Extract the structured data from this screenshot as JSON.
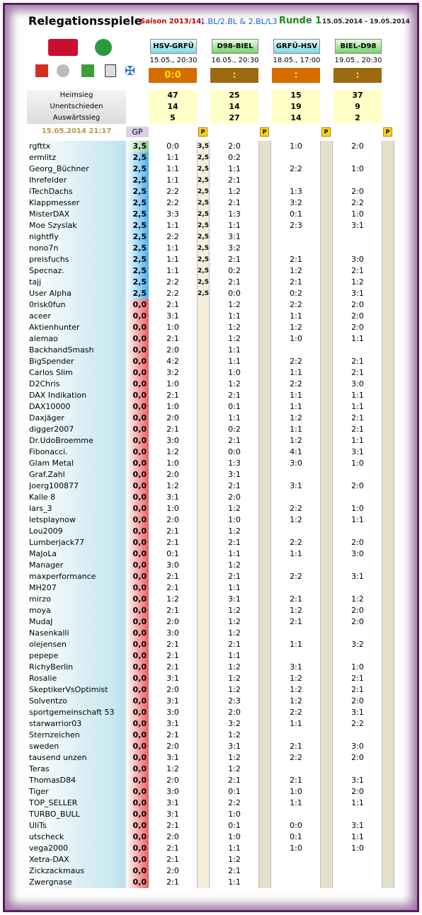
{
  "header": {
    "title": "Relegationsspiele",
    "season": "Saison 2013/14,",
    "leagues": "1.BL/2.BL & 2.BL/L3",
    "round": "Runde 1",
    "dates": "15.05.2014 - 19.05.2014"
  },
  "games": [
    {
      "teams": "HSV-GRFÜ",
      "date": "15.05., 20:30",
      "result": "0:0",
      "stats": [
        47,
        14,
        5
      ]
    },
    {
      "teams": "D98-BIEL",
      "date": "16.05., 20:30",
      "result": ":",
      "stats": [
        25,
        14,
        27
      ]
    },
    {
      "teams": "GRFÜ-HSV",
      "date": "18.05., 17:00",
      "result": ":",
      "stats": [
        15,
        19,
        14
      ]
    },
    {
      "teams": "BIEL-D98",
      "date": "19.05., 20:30",
      "result": ":",
      "stats": [
        37,
        9,
        2
      ]
    }
  ],
  "stat_labels": [
    "Heimsieg",
    "Unentschieden",
    "Auswärtssieg"
  ],
  "timestamp": "15.05.2014 21:17",
  "gp_label": "GP",
  "p_label": "P",
  "rows": [
    {
      "name": "rgfttx",
      "gp": "3,5",
      "tips": [
        "0:0",
        "2:0",
        "1:0",
        "2:0"
      ],
      "pts": "3,5"
    },
    {
      "name": "ermlitz",
      "gp": "2,5",
      "tips": [
        "1:1",
        "0:2",
        null,
        null
      ],
      "pts": "2,5"
    },
    {
      "name": "Georg_Büchner",
      "gp": "2,5",
      "tips": [
        "1:1",
        "1:1",
        "2:2",
        "1:0"
      ],
      "pts": "2,5"
    },
    {
      "name": "Ihrefelder",
      "gp": "2,5",
      "tips": [
        "1:1",
        "2:1",
        null,
        null
      ],
      "pts": "2,5"
    },
    {
      "name": "iTechDachs",
      "gp": "2,5",
      "tips": [
        "2:2",
        "1:2",
        "1:3",
        "2:0"
      ],
      "pts": "2,5"
    },
    {
      "name": "Klappmesser",
      "gp": "2,5",
      "tips": [
        "2:2",
        "2:1",
        "3:2",
        "2:2"
      ],
      "pts": "2,5"
    },
    {
      "name": "MisterDAX",
      "gp": "2,5",
      "tips": [
        "3:3",
        "1:3",
        "0:1",
        "1:0"
      ],
      "pts": "2,5"
    },
    {
      "name": "Moe Szyslak",
      "gp": "2,5",
      "tips": [
        "1:1",
        "1:1",
        "2:3",
        "3:1"
      ],
      "pts": "2,5"
    },
    {
      "name": "nightfly",
      "gp": "2,5",
      "tips": [
        "2:2",
        "3:1",
        null,
        null
      ],
      "pts": "2,5"
    },
    {
      "name": "nono7n",
      "gp": "2,5",
      "tips": [
        "1:1",
        "3:2",
        null,
        null
      ],
      "pts": "2,5"
    },
    {
      "name": "preisfuchs",
      "gp": "2,5",
      "tips": [
        "1:1",
        "2:1",
        "2:1",
        "3:0"
      ],
      "pts": "2,5"
    },
    {
      "name": "Specnaz.",
      "gp": "2,5",
      "tips": [
        "1:1",
        "0:2",
        "1:2",
        "2:1"
      ],
      "pts": "2,5"
    },
    {
      "name": "tajj",
      "gp": "2,5",
      "tips": [
        "2:2",
        "2:1",
        "2:1",
        "1:2"
      ],
      "pts": "2,5"
    },
    {
      "name": "User Alpha",
      "gp": "2,5",
      "tips": [
        "2:2",
        "0:0",
        "0:2",
        "3:1"
      ],
      "pts": "2,5"
    },
    {
      "name": "0risk0fun",
      "gp": "0,0",
      "tips": [
        "2:1",
        "1:2",
        "2:2",
        "2:0"
      ]
    },
    {
      "name": "aceer",
      "gp": "0,0",
      "tips": [
        "3:1",
        "1:1",
        "1:1",
        "2:0"
      ]
    },
    {
      "name": "Aktienhunter",
      "gp": "0,0",
      "tips": [
        "1:0",
        "1:2",
        "1:2",
        "2:0"
      ]
    },
    {
      "name": "alemao",
      "gp": "0,0",
      "tips": [
        "2:1",
        "1:2",
        "1:0",
        "1:1"
      ]
    },
    {
      "name": "BackhandSmash",
      "gp": "0,0",
      "tips": [
        "2:0",
        "1:1",
        null,
        null
      ]
    },
    {
      "name": "BigSpender",
      "gp": "0,0",
      "tips": [
        "4:2",
        "1:1",
        "2:2",
        "2:1"
      ]
    },
    {
      "name": "Carlos Slim",
      "gp": "0,0",
      "tips": [
        "3:2",
        "1:0",
        "1:1",
        "2:1"
      ]
    },
    {
      "name": "D2Chris",
      "gp": "0,0",
      "tips": [
        "1:0",
        "1:2",
        "2:2",
        "3:0"
      ]
    },
    {
      "name": "DAX Indikation",
      "gp": "0,0",
      "tips": [
        "2:1",
        "2:1",
        "1:1",
        "1:1"
      ]
    },
    {
      "name": "DAX10000",
      "gp": "0,0",
      "tips": [
        "1:0",
        "0:1",
        "1:1",
        "1:1"
      ]
    },
    {
      "name": "Daxjäger",
      "gp": "0,0",
      "tips": [
        "2:0",
        "1:1",
        "1:2",
        "2:1"
      ]
    },
    {
      "name": "digger2007",
      "gp": "0,0",
      "tips": [
        "2:1",
        "0:2",
        "1:1",
        "2:1"
      ]
    },
    {
      "name": "Dr.UdoBroemme",
      "gp": "0,0",
      "tips": [
        "3:0",
        "2:1",
        "1:2",
        "1:1"
      ]
    },
    {
      "name": "Fibonacci.",
      "gp": "0,0",
      "tips": [
        "1:2",
        "0:0",
        "4:1",
        "3:1"
      ]
    },
    {
      "name": "Glam Metal",
      "gp": "0,0",
      "tips": [
        "1:0",
        "1:3",
        "3:0",
        "1:0"
      ]
    },
    {
      "name": "Graf.Zahl",
      "gp": "0,0",
      "tips": [
        "2:0",
        "3:1",
        null,
        null
      ]
    },
    {
      "name": "Joerg100877",
      "gp": "0,0",
      "tips": [
        "1:2",
        "2:1",
        "3:1",
        "2:0"
      ]
    },
    {
      "name": "Kalle 8",
      "gp": "0,0",
      "tips": [
        "3:1",
        "2:0",
        null,
        null
      ]
    },
    {
      "name": "lars_3",
      "gp": "0,0",
      "tips": [
        "1:0",
        "1:2",
        "2:2",
        "1:0"
      ]
    },
    {
      "name": "letsplaynow",
      "gp": "0,0",
      "tips": [
        "2:0",
        "1:0",
        "1:2",
        "1:1"
      ]
    },
    {
      "name": "Lou2009",
      "gp": "0,0",
      "tips": [
        "2:1",
        "1:2",
        null,
        null
      ]
    },
    {
      "name": "Lumberjack77",
      "gp": "0,0",
      "tips": [
        "2:1",
        "2:1",
        "2:2",
        "2:0"
      ]
    },
    {
      "name": "MaJoLa",
      "gp": "0,0",
      "tips": [
        "0:1",
        "1:1",
        "1:1",
        "3:0"
      ]
    },
    {
      "name": "Manager",
      "gp": "0,0",
      "tips": [
        "3:0",
        "1:2",
        null,
        null
      ]
    },
    {
      "name": "maxperformance",
      "gp": "0,0",
      "tips": [
        "2:1",
        "2:1",
        "2:2",
        "3:1"
      ]
    },
    {
      "name": "MH207",
      "gp": "0,0",
      "tips": [
        "2:1",
        "1:1",
        null,
        null
      ]
    },
    {
      "name": "mirzo",
      "gp": "0,0",
      "tips": [
        "1:2",
        "3:1",
        "2:1",
        "1:2"
      ]
    },
    {
      "name": "moya",
      "gp": "0,0",
      "tips": [
        "2:1",
        "1:2",
        "1:2",
        "2:0"
      ]
    },
    {
      "name": "MudaJ",
      "gp": "0,0",
      "tips": [
        "2:0",
        "1:2",
        "2:1",
        "2:0"
      ]
    },
    {
      "name": "Nasenkalli",
      "gp": "0,0",
      "tips": [
        "3:0",
        "1:2",
        null,
        null
      ]
    },
    {
      "name": "olejensen",
      "gp": "0,0",
      "tips": [
        "2:1",
        "2:1",
        "1:1",
        "3:2"
      ]
    },
    {
      "name": "pepepe",
      "gp": "0,0",
      "tips": [
        "2:1",
        "1:1",
        null,
        null
      ]
    },
    {
      "name": "RichyBerlin",
      "gp": "0,0",
      "tips": [
        "2:1",
        "1:2",
        "3:1",
        "1:0"
      ]
    },
    {
      "name": "Rosalie",
      "gp": "0,0",
      "tips": [
        "3:1",
        "1:2",
        "1:2",
        "2:1"
      ]
    },
    {
      "name": "SkeptikerVsOptimist",
      "gp": "0,0",
      "tips": [
        "2:0",
        "1:2",
        "1:2",
        "2:1"
      ]
    },
    {
      "name": "Solventzo",
      "gp": "0,0",
      "tips": [
        "3:1",
        "2:3",
        "1:2",
        "2:0"
      ]
    },
    {
      "name": "sportgemeinschaft 53",
      "gp": "0,0",
      "tips": [
        "3:0",
        "2:0",
        "2:2",
        "3:1"
      ]
    },
    {
      "name": "starwarrior03",
      "gp": "0,0",
      "tips": [
        "3:1",
        "3:2",
        "1:1",
        "2:2"
      ]
    },
    {
      "name": "Sternzeichen",
      "gp": "0,0",
      "tips": [
        "2:1",
        "1:2",
        null,
        null
      ]
    },
    {
      "name": "sweden",
      "gp": "0,0",
      "tips": [
        "2:0",
        "3:1",
        "2:1",
        "3:0"
      ]
    },
    {
      "name": "tausend unzen",
      "gp": "0,0",
      "tips": [
        "3:1",
        "1:2",
        "2:2",
        "2:0"
      ]
    },
    {
      "name": "Teras",
      "gp": "0,0",
      "tips": [
        "1:2",
        "1:2",
        null,
        null
      ]
    },
    {
      "name": "ThomasD84",
      "gp": "0,0",
      "tips": [
        "2:0",
        "2:1",
        "2:1",
        "3:1"
      ]
    },
    {
      "name": "Tiger",
      "gp": "0,0",
      "tips": [
        "3:0",
        "0:1",
        "1:0",
        "2:0"
      ]
    },
    {
      "name": "TOP_SELLER",
      "gp": "0,0",
      "tips": [
        "3:1",
        "2:2",
        "1:1",
        "1:1"
      ]
    },
    {
      "name": "TURBO_BULL",
      "gp": "0,0",
      "tips": [
        "3:1",
        "1:0",
        null,
        null
      ]
    },
    {
      "name": "UliTs",
      "gp": "0,0",
      "tips": [
        "2:1",
        "0:1",
        "0:0",
        "3:1"
      ]
    },
    {
      "name": "utscheck",
      "gp": "0,0",
      "tips": [
        "2:0",
        "1:0",
        "0:1",
        "1:1"
      ]
    },
    {
      "name": "vega2000",
      "gp": "0,0",
      "tips": [
        "2:1",
        "1:1",
        "1:0",
        "1:0"
      ]
    },
    {
      "name": "Xetra-DAX",
      "gp": "0,0",
      "tips": [
        "2:1",
        "1:2",
        null,
        null
      ]
    },
    {
      "name": "Zickzackmaus",
      "gp": "0,0",
      "tips": [
        "2:0",
        "2:1",
        null,
        null
      ]
    },
    {
      "name": "Zwergnase",
      "gp": "0,0",
      "tips": [
        "2:1",
        "1:1",
        null,
        null
      ]
    }
  ]
}
